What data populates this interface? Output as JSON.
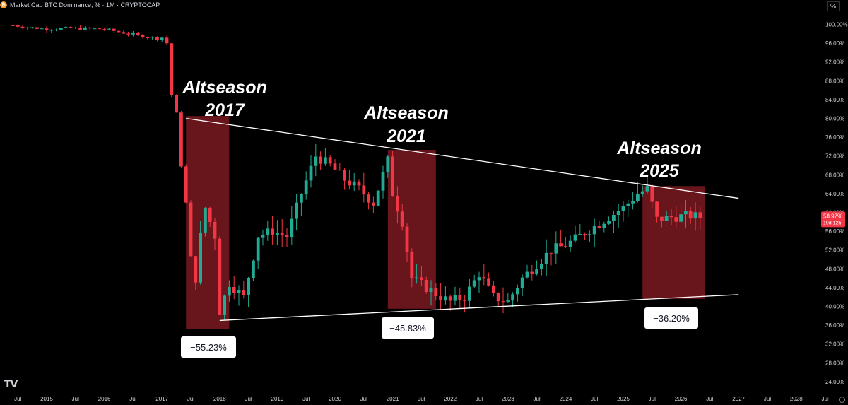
{
  "header": {
    "title": "Market Cap BTC Dominance, % · 1M · CRYPTOCAP",
    "icon": "bitcoin-icon",
    "unit_button": "%"
  },
  "logo_text": "TV",
  "price_label": {
    "value": "58.97%",
    "countdown": "19d 12h",
    "color": "#f23645"
  },
  "colors": {
    "up": "#22ab94",
    "down": "#f23645",
    "box": "#8b1e24",
    "line": "#ffffff",
    "background": "#000000"
  },
  "annotations": [
    {
      "line1": "Altseason",
      "line2": "2017"
    },
    {
      "line1": "Altseason",
      "line2": "2021"
    },
    {
      "line1": "Altseason",
      "line2": "2025"
    }
  ],
  "drawdown_labels": [
    "−55.23%",
    "−45.83%",
    "−36.20%"
  ],
  "chart_data": {
    "type": "candlestick",
    "yaxis_ticks": [
      "100.00%",
      "96.00%",
      "92.00%",
      "88.00%",
      "84.00%",
      "80.00%",
      "76.00%",
      "72.00%",
      "68.00%",
      "64.00%",
      "60.00%",
      "56.00%",
      "52.00%",
      "48.00%",
      "44.00%",
      "40.00%",
      "36.00%",
      "32.00%",
      "28.00%",
      "24.00%"
    ],
    "xaxis_ticks": [
      "Jul",
      "2015",
      "Jul",
      "2016",
      "Jul",
      "2017",
      "Jul",
      "2018",
      "Jul",
      "2019",
      "Jul",
      "2020",
      "Jul",
      "2021",
      "Jul",
      "2022",
      "Jul",
      "2023",
      "Jul",
      "2024",
      "Jul",
      "2025",
      "Jul",
      "2026",
      "Jul",
      "2027",
      "Jul",
      "2028",
      "Jul"
    ],
    "ylim": [
      20.5,
      101.5
    ],
    "xlim": [
      "2014-05",
      "2028-08"
    ],
    "series": [
      {
        "name": "BTC Dominance",
        "monthly_close_approx": [
          [
            "2014-06",
            99.8
          ],
          [
            "2014-09",
            99.4
          ],
          [
            "2015-01",
            99.0
          ],
          [
            "2015-06",
            99.2
          ],
          [
            "2016-01",
            99.0
          ],
          [
            "2016-06",
            98.0
          ],
          [
            "2016-12",
            97.0
          ],
          [
            "2017-01",
            97.2
          ],
          [
            "2017-02",
            96.0
          ],
          [
            "2017-03",
            85.0
          ],
          [
            "2017-04",
            81.0
          ],
          [
            "2017-05",
            70.0
          ],
          [
            "2017-06",
            62.0
          ],
          [
            "2017-07",
            50.0
          ],
          [
            "2017-08",
            46.0
          ],
          [
            "2017-09",
            55.0
          ],
          [
            "2017-10",
            61.0
          ],
          [
            "2017-11",
            58.0
          ],
          [
            "2017-12",
            55.0
          ],
          [
            "2018-01",
            39.0
          ],
          [
            "2018-02",
            42.0
          ],
          [
            "2018-03",
            45.0
          ],
          [
            "2018-06",
            42.0
          ],
          [
            "2018-09",
            55.0
          ],
          [
            "2018-12",
            56.0
          ],
          [
            "2019-03",
            55.0
          ],
          [
            "2019-06",
            64.0
          ],
          [
            "2019-09",
            72.0
          ],
          [
            "2019-12",
            70.0
          ],
          [
            "2020-03",
            67.0
          ],
          [
            "2020-06",
            65.0
          ],
          [
            "2020-09",
            62.0
          ],
          [
            "2020-12",
            71.0
          ],
          [
            "2021-01",
            64.0
          ],
          [
            "2021-03",
            58.0
          ],
          [
            "2021-05",
            46.0
          ],
          [
            "2021-08",
            44.0
          ],
          [
            "2021-11",
            42.0
          ],
          [
            "2022-01",
            41.0
          ],
          [
            "2022-04",
            42.0
          ],
          [
            "2022-07",
            47.0
          ],
          [
            "2022-10",
            42.0
          ],
          [
            "2023-01",
            41.0
          ],
          [
            "2023-04",
            46.0
          ],
          [
            "2023-07",
            49.0
          ],
          [
            "2023-10",
            52.0
          ],
          [
            "2024-01",
            53.0
          ],
          [
            "2024-04",
            55.0
          ],
          [
            "2024-07",
            57.0
          ],
          [
            "2024-10",
            59.0
          ],
          [
            "2025-01",
            61.0
          ],
          [
            "2025-04",
            64.0
          ],
          [
            "2025-06",
            65.0
          ],
          [
            "2025-08",
            58.5
          ],
          [
            "2025-11",
            59.0
          ],
          [
            "2026-03",
            59.3
          ],
          [
            "2026-05",
            58.97
          ]
        ]
      }
    ],
    "trendlines": [
      {
        "name": "upper",
        "from": [
          "2017-06",
          80.0
        ],
        "to": [
          "2027-01",
          63.0
        ]
      },
      {
        "name": "lower",
        "from": [
          "2018-01",
          37.0
        ],
        "to": [
          "2027-01",
          42.5
        ]
      }
    ],
    "highlight_periods": [
      {
        "from": "2017-06",
        "to": "2018-03"
      },
      {
        "from": "2020-12",
        "to": "2021-10"
      },
      {
        "from": "2025-05",
        "to": "2026-06"
      }
    ]
  }
}
